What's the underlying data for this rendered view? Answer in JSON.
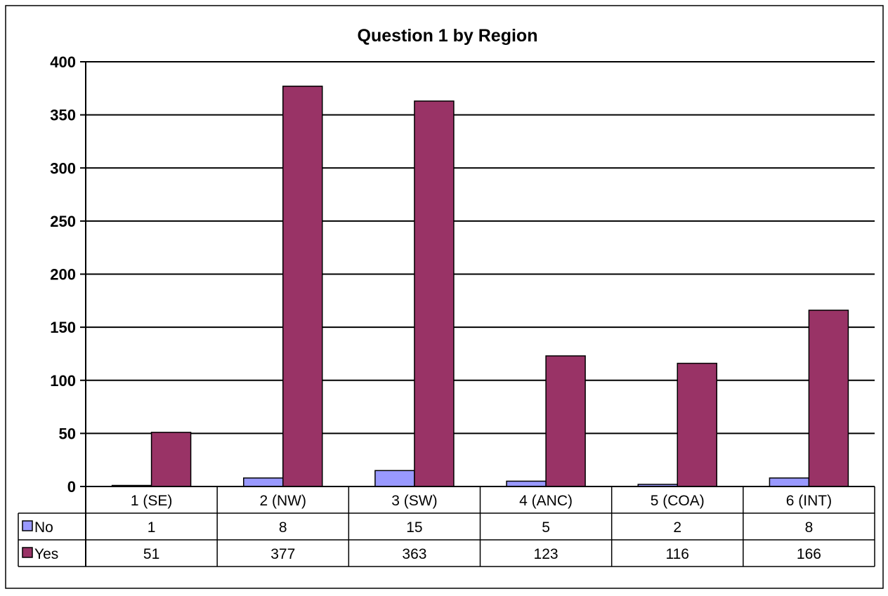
{
  "chart_data": {
    "type": "bar",
    "title": "Question 1 by Region",
    "categories": [
      "1 (SE)",
      "2 (NW)",
      "3 (SW)",
      "4 (ANC)",
      "5 (COA)",
      "6 (INT)"
    ],
    "series": [
      {
        "name": "No",
        "color": "#9999ff",
        "values": [
          1,
          8,
          15,
          5,
          2,
          8
        ]
      },
      {
        "name": "Yes",
        "color": "#993366",
        "values": [
          51,
          377,
          363,
          123,
          116,
          166
        ]
      }
    ],
    "y_ticks": [
      "0",
      "50",
      "100",
      "150",
      "200",
      "250",
      "300",
      "350",
      "400"
    ],
    "ylim": [
      0,
      400
    ],
    "grid": true,
    "legend": "data-table-left",
    "data_table": true,
    "xlabel": "",
    "ylabel": ""
  }
}
